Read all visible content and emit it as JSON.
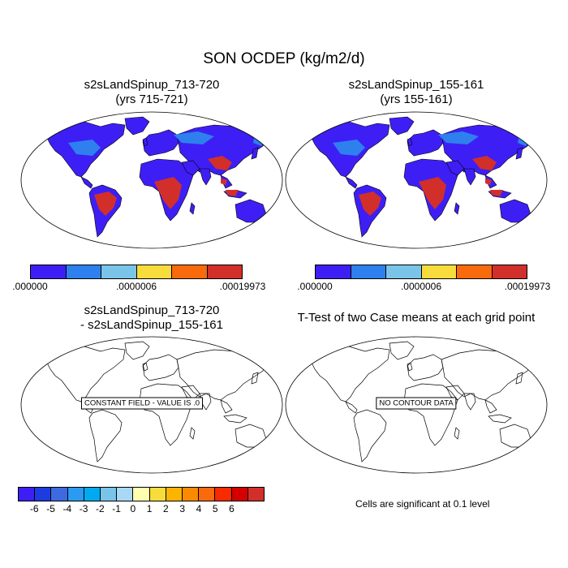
{
  "title": "SON OCDEP (kg/m2/d)",
  "panels": {
    "top_left": {
      "title_line1": "s2sLandSpinup_713-720",
      "title_line2": "(yrs 715-721)"
    },
    "top_right": {
      "title_line1": "s2sLandSpinup_155-161",
      "title_line2": "(yrs 155-161)"
    },
    "bottom_left": {
      "title_line1": "s2sLandSpinup_713-720",
      "title_line2": "- s2sLandSpinup_155-161",
      "message": "CONSTANT FIELD - VALUE IS .0"
    },
    "bottom_right": {
      "title_line1": "T-Test of two Case means at each grid point",
      "message": "NO CONTOUR DATA",
      "note": "Cells are significant at 0.1 level"
    }
  },
  "colorbar_top": {
    "colors": [
      "#3d1ff5",
      "#2e80ee",
      "#7ac4ea",
      "#f8dc3c",
      "#f86a0c",
      "#d22f2a"
    ],
    "labels": [
      ".000000",
      ".0000006",
      ".00019973"
    ]
  },
  "colorbar_bottom": {
    "colors": [
      "#3d1ff5",
      "#1c3ce0",
      "#3d6ae0",
      "#2a9bf0",
      "#00aaf0",
      "#7ac4ea",
      "#a8d8f5",
      "#ffffb0",
      "#f8dc3c",
      "#fcb400",
      "#fa8a00",
      "#f86a0c",
      "#f82a00",
      "#d40000",
      "#d22f2a"
    ],
    "labels": [
      "-6",
      "-5",
      "-4",
      "-3",
      "-2",
      "-1",
      "0",
      "1",
      "2",
      "3",
      "4",
      "5",
      "6"
    ]
  },
  "legend_colors": {
    "land_low": "#3d1ff5",
    "land_mid": "#2e80ee",
    "land_high": "#d22f2a",
    "ocean": "#ffffff"
  }
}
